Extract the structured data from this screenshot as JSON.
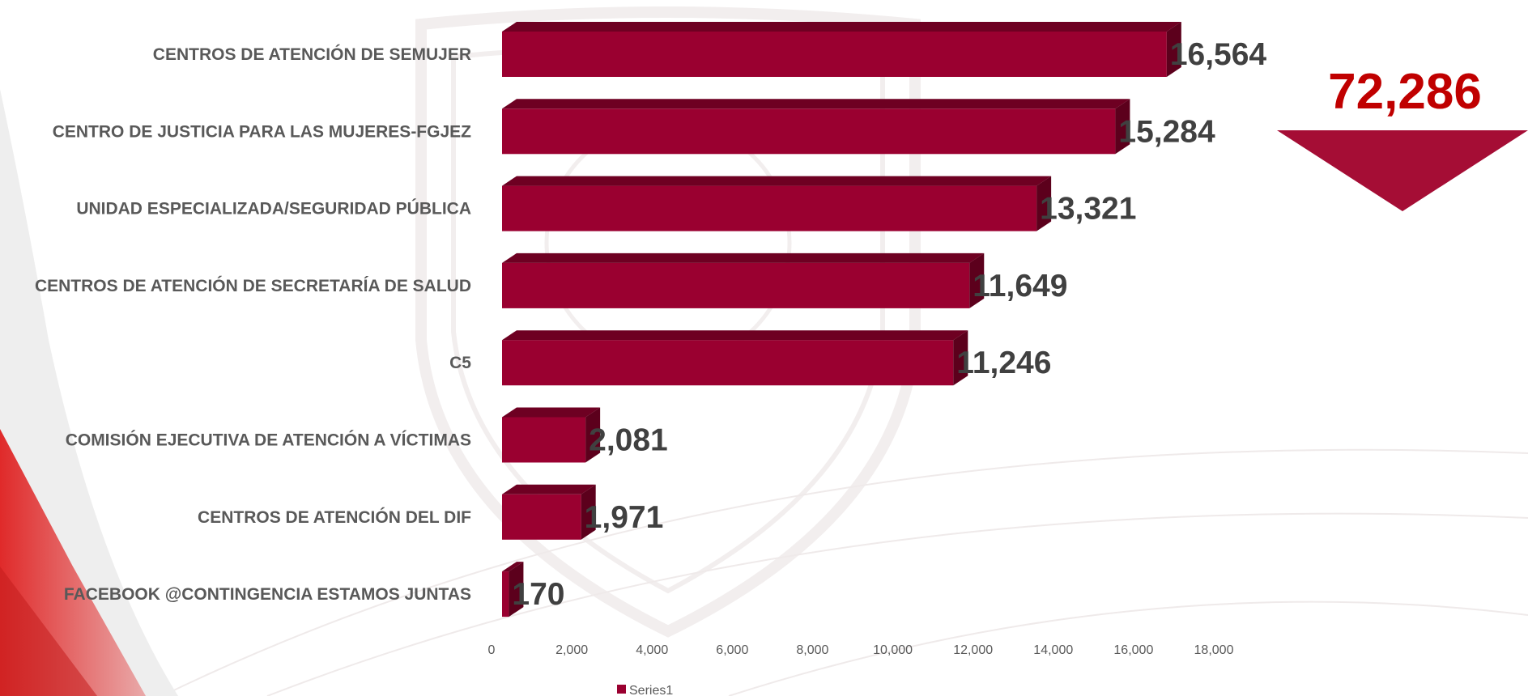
{
  "total": {
    "value": "72,286"
  },
  "colors": {
    "bar_front": "#9a0030",
    "bar_top": "#6e0022",
    "bar_side": "#5c001c",
    "callout": "#c00000",
    "arrow": "#a50d35"
  },
  "chart_data": {
    "type": "bar",
    "orientation": "horizontal",
    "style": "3d",
    "categories": [
      "CENTROS DE ATENCIÓN DE SEMUJER",
      "CENTRO DE JUSTICIA PARA LAS MUJERES-FGJEZ",
      "UNIDAD ESPECIALIZADA/SEGURIDAD PÚBLICA",
      "CENTROS DE ATENCIÓN  DE SECRETARÍA  DE SALUD",
      "C5",
      "COMISIÓN EJECUTIVA DE ATENCIÓN A VÍCTIMAS",
      "CENTROS DE ATENCIÓN  DEL DIF",
      "FACEBOOK @CONTINGENCIA ESTAMOS JUNTAS"
    ],
    "series": [
      {
        "name": "Series1",
        "values": [
          16564,
          15284,
          13321,
          11649,
          11246,
          2081,
          1971,
          170
        ]
      }
    ],
    "data_labels": [
      "16,564",
      "15,284",
      "13,321",
      "11,649",
      "11,246",
      "2,081",
      "1,971",
      "170"
    ],
    "xlim": [
      0,
      18000
    ],
    "x_ticks": [
      "0",
      "2,000",
      "4,000",
      "6,000",
      "8,000",
      "10,000",
      "12,000",
      "14,000",
      "16,000",
      "18,000"
    ],
    "grid": false,
    "legend": "bottom"
  }
}
